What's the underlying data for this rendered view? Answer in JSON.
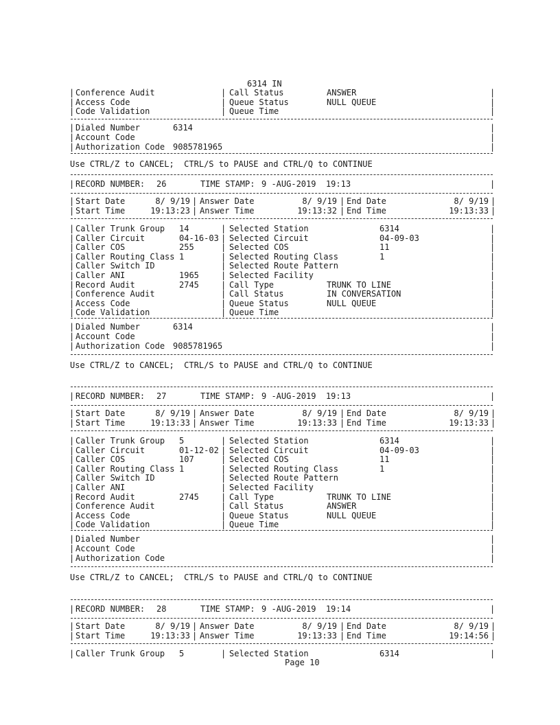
{
  "continuation": {
    "continued_text": "6314 IN",
    "caller_fields": [
      {
        "label": "Conference Audit",
        "value": ""
      },
      {
        "label": "Access Code",
        "value": ""
      },
      {
        "label": "Code Validation",
        "value": ""
      }
    ],
    "selected_fields": [
      {
        "label": "Call Status",
        "value": "ANSWER"
      },
      {
        "label": "Queue Status",
        "value": "NULL QUEUE"
      },
      {
        "label": "Queue Time",
        "value": ""
      }
    ],
    "dialed_fields": [
      {
        "label": "Dialed Number",
        "value": "6314"
      },
      {
        "label": "Account Code",
        "value": ""
      },
      {
        "label": "Authorization Code",
        "value": "9085781965"
      }
    ]
  },
  "prompt_text": "Use CTRL/Z to CANCEL;  CTRL/S to PAUSE and CTRL/Q to CONTINUE",
  "labels": {
    "record_number": "RECORD NUMBER:",
    "time_stamp": "TIME STAMP:",
    "start_date": "Start Date",
    "start_time": "Start Time",
    "answer_date": "Answer Date",
    "answer_time": "Answer Time",
    "end_date": "End Date",
    "end_time": "End Time"
  },
  "records": [
    {
      "record_number": "26",
      "time_stamp": "9 -AUG-2019  19:13",
      "start_date": "8/ 9/19",
      "start_time": "19:13:23",
      "answer_date": "8/ 9/19",
      "answer_time": "19:13:32",
      "end_date": "8/ 9/19",
      "end_time": "19:13:33",
      "caller_fields": [
        {
          "label": "Caller Trunk Group",
          "value": "14"
        },
        {
          "label": "Caller Circuit",
          "value": "04-16-03"
        },
        {
          "label": "Caller COS",
          "value": "255"
        },
        {
          "label": "Caller Routing Class",
          "value": "1"
        },
        {
          "label": "Caller Switch ID",
          "value": ""
        },
        {
          "label": "Caller ANI",
          "value": "1965"
        },
        {
          "label": "Record Audit",
          "value": "2745"
        },
        {
          "label": "Conference Audit",
          "value": ""
        },
        {
          "label": "Access Code",
          "value": ""
        },
        {
          "label": "Code Validation",
          "value": ""
        }
      ],
      "selected_fields": [
        {
          "label": "Selected Station",
          "value": "6314"
        },
        {
          "label": "Selected Circuit",
          "value": "04-09-03"
        },
        {
          "label": "Selected COS",
          "value": "11"
        },
        {
          "label": "Selected Routing Class",
          "value": "1"
        },
        {
          "label": "Selected Route Pattern",
          "value": ""
        },
        {
          "label": "Selected Facility",
          "value": ""
        },
        {
          "label": "Call Type",
          "value": "TRUNK TO LINE"
        },
        {
          "label": "Call Status",
          "value": "IN CONVERSATION"
        },
        {
          "label": "Queue Status",
          "value": "NULL QUEUE"
        },
        {
          "label": "Queue Time",
          "value": ""
        }
      ],
      "dialed_fields": [
        {
          "label": "Dialed Number",
          "value": "6314"
        },
        {
          "label": "Account Code",
          "value": ""
        },
        {
          "label": "Authorization Code",
          "value": "9085781965"
        }
      ]
    },
    {
      "record_number": "27",
      "time_stamp": "9 -AUG-2019  19:13",
      "start_date": "8/ 9/19",
      "start_time": "19:13:33",
      "answer_date": "8/ 9/19",
      "answer_time": "19:13:33",
      "end_date": "8/ 9/19",
      "end_time": "19:13:33",
      "caller_fields": [
        {
          "label": "Caller Trunk Group",
          "value": "5"
        },
        {
          "label": "Caller Circuit",
          "value": "01-12-02"
        },
        {
          "label": "Caller COS",
          "value": "107"
        },
        {
          "label": "Caller Routing Class",
          "value": "1"
        },
        {
          "label": "Caller Switch ID",
          "value": ""
        },
        {
          "label": "Caller ANI",
          "value": ""
        },
        {
          "label": "Record Audit",
          "value": "2745"
        },
        {
          "label": "Conference Audit",
          "value": ""
        },
        {
          "label": "Access Code",
          "value": ""
        },
        {
          "label": "Code Validation",
          "value": ""
        }
      ],
      "selected_fields": [
        {
          "label": "Selected Station",
          "value": "6314"
        },
        {
          "label": "Selected Circuit",
          "value": "04-09-03"
        },
        {
          "label": "Selected COS",
          "value": "11"
        },
        {
          "label": "Selected Routing Class",
          "value": "1"
        },
        {
          "label": "Selected Route Pattern",
          "value": ""
        },
        {
          "label": "Selected Facility",
          "value": ""
        },
        {
          "label": "Call Type",
          "value": "TRUNK TO LINE"
        },
        {
          "label": "Call Status",
          "value": "ANSWER"
        },
        {
          "label": "Queue Status",
          "value": "NULL QUEUE"
        },
        {
          "label": "Queue Time",
          "value": ""
        }
      ],
      "dialed_fields": [
        {
          "label": "Dialed Number",
          "value": ""
        },
        {
          "label": "Account Code",
          "value": ""
        },
        {
          "label": "Authorization Code",
          "value": ""
        }
      ]
    },
    {
      "record_number": "28",
      "time_stamp": "9 -AUG-2019  19:14",
      "start_date": "8/ 9/19",
      "start_time": "19:13:33",
      "answer_date": "8/ 9/19",
      "answer_time": "19:13:33",
      "end_date": "8/ 9/19",
      "end_time": "19:14:56",
      "caller_fields": [
        {
          "label": "Caller Trunk Group",
          "value": "5"
        }
      ],
      "selected_fields": [
        {
          "label": "Selected Station",
          "value": "6314"
        }
      ],
      "dialed_fields": []
    }
  ],
  "footer": {
    "page_label": "Page 10"
  }
}
